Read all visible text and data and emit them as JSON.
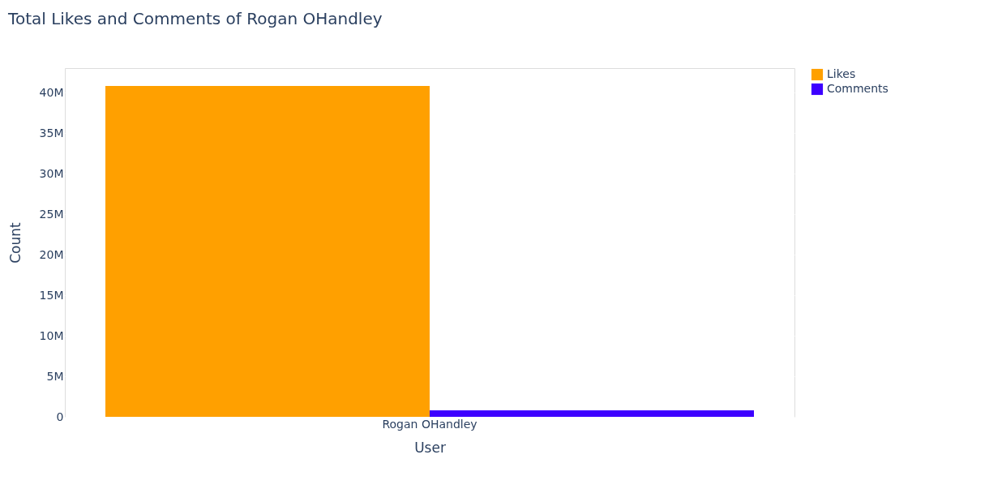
{
  "chart_data": {
    "type": "bar",
    "title": "Total Likes and Comments of Rogan OHandley",
    "xlabel": "User",
    "ylabel": "Count",
    "categories": [
      "Rogan OHandley"
    ],
    "series": [
      {
        "name": "Likes",
        "color": "#ffa000",
        "values": [
          40800000
        ]
      },
      {
        "name": "Comments",
        "color": "#3d00ff",
        "values": [
          800000
        ]
      }
    ],
    "ylim": [
      0,
      43000000
    ],
    "yticks": [
      0,
      {
        "value": 5000000,
        "label": "5M"
      },
      {
        "value": 10000000,
        "label": "10M"
      },
      {
        "value": 15000000,
        "label": "15M"
      },
      {
        "value": 20000000,
        "label": "20M"
      },
      {
        "value": 25000000,
        "label": "25M"
      },
      {
        "value": 30000000,
        "label": "30M"
      },
      {
        "value": 35000000,
        "label": "35M"
      },
      {
        "value": 40000000,
        "label": "40M"
      }
    ],
    "grid": "y",
    "legend": "top right"
  }
}
